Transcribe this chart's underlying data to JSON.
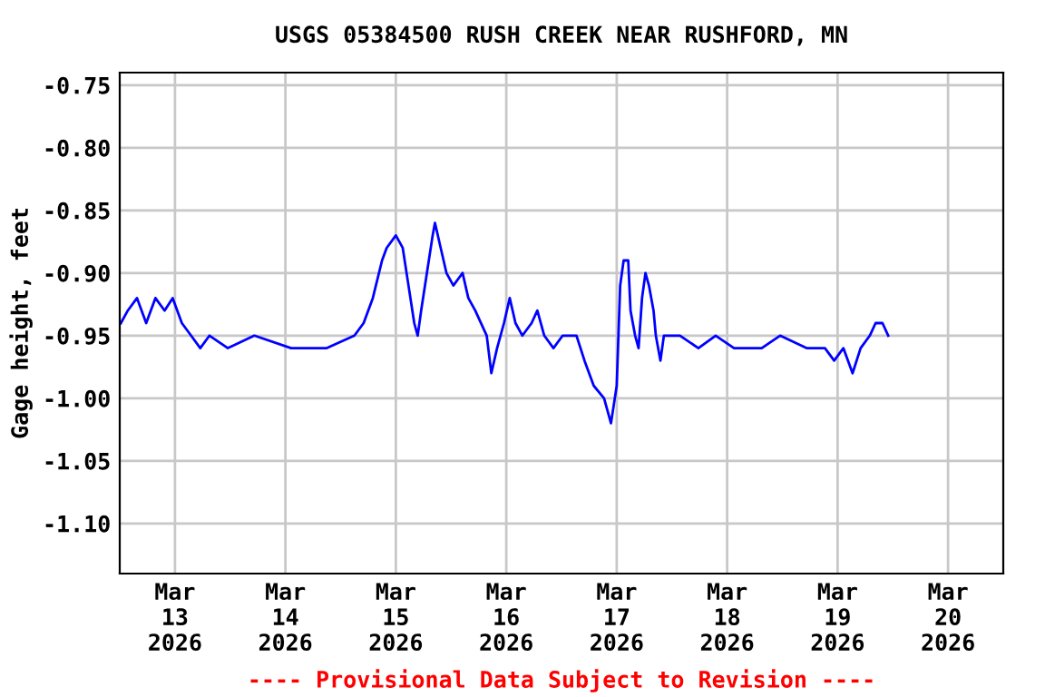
{
  "chart_data": {
    "type": "line",
    "title": "USGS 05384500 RUSH CREEK NEAR RUSHFORD, MN",
    "ylabel": "Gage height, feet",
    "annotations": [
      "---- Provisional Data Subject to Revision ----"
    ],
    "x": [
      "2026-03-12T12:15",
      "2026-03-12T13:45",
      "2026-03-12T15:45",
      "2026-03-12T17:45",
      "2026-03-12T19:45",
      "2026-03-12T21:45",
      "2026-03-12T23:30",
      "2026-03-13T01:30",
      "2026-03-13T03:30",
      "2026-03-13T05:30",
      "2026-03-13T07:30",
      "2026-03-13T11:30",
      "2026-03-13T17:15",
      "2026-03-14T01:15",
      "2026-03-14T05:00",
      "2026-03-14T09:00",
      "2026-03-14T15:00",
      "2026-03-14T17:00",
      "2026-03-14T19:00",
      "2026-03-14T21:00",
      "2026-03-14T22:00",
      "2026-03-15T00:00",
      "2026-03-15T01:30",
      "2026-03-15T02:45",
      "2026-03-15T04:00",
      "2026-03-15T04:45",
      "2026-03-15T05:30",
      "2026-03-15T06:45",
      "2026-03-15T08:00",
      "2026-03-15T08:30",
      "2026-03-15T09:45",
      "2026-03-15T11:00",
      "2026-03-15T12:30",
      "2026-03-15T14:30",
      "2026-03-15T15:45",
      "2026-03-15T17:15",
      "2026-03-15T19:45",
      "2026-03-15T20:45",
      "2026-03-15T22:00",
      "2026-03-15T23:30",
      "2026-03-16T00:45",
      "2026-03-16T02:00",
      "2026-03-16T03:30",
      "2026-03-16T05:30",
      "2026-03-16T06:45",
      "2026-03-16T08:15",
      "2026-03-16T10:15",
      "2026-03-16T12:15",
      "2026-03-16T15:15",
      "2026-03-16T17:00",
      "2026-03-16T19:00",
      "2026-03-16T21:15",
      "2026-03-16T22:45",
      "2026-03-17T00:00",
      "2026-03-17T00:45",
      "2026-03-17T01:30",
      "2026-03-17T02:30",
      "2026-03-17T03:00",
      "2026-03-17T04:00",
      "2026-03-17T04:45",
      "2026-03-17T05:30",
      "2026-03-17T06:15",
      "2026-03-17T07:00",
      "2026-03-17T08:00",
      "2026-03-17T08:30",
      "2026-03-17T09:30",
      "2026-03-17T10:15",
      "2026-03-17T13:45",
      "2026-03-17T17:45",
      "2026-03-17T21:30",
      "2026-03-18T01:30",
      "2026-03-18T07:30",
      "2026-03-18T11:30",
      "2026-03-18T17:15",
      "2026-03-18T21:15",
      "2026-03-18T23:15",
      "2026-03-19T01:15",
      "2026-03-19T03:15",
      "2026-03-19T05:00",
      "2026-03-19T07:00",
      "2026-03-19T08:15",
      "2026-03-19T09:45",
      "2026-03-19T11:00"
    ],
    "series": [
      {
        "color": "#0000ff",
        "values": [
          -0.94,
          -0.93,
          -0.92,
          -0.94,
          -0.92,
          -0.93,
          -0.92,
          -0.94,
          -0.95,
          -0.96,
          -0.95,
          -0.96,
          -0.95,
          -0.96,
          -0.96,
          -0.96,
          -0.95,
          -0.94,
          -0.92,
          -0.89,
          -0.88,
          -0.87,
          -0.88,
          -0.91,
          -0.94,
          -0.95,
          -0.93,
          -0.9,
          -0.87,
          -0.86,
          -0.88,
          -0.9,
          -0.91,
          -0.9,
          -0.92,
          -0.93,
          -0.95,
          -0.98,
          -0.96,
          -0.94,
          -0.92,
          -0.94,
          -0.95,
          -0.94,
          -0.93,
          -0.95,
          -0.96,
          -0.95,
          -0.95,
          -0.97,
          -0.99,
          -1.0,
          -1.02,
          -0.99,
          -0.91,
          -0.89,
          -0.89,
          -0.93,
          -0.95,
          -0.96,
          -0.92,
          -0.9,
          -0.91,
          -0.93,
          -0.95,
          -0.97,
          -0.95,
          -0.95,
          -0.96,
          -0.95,
          -0.96,
          -0.96,
          -0.95,
          -0.96,
          -0.96,
          -0.97,
          -0.96,
          -0.98,
          -0.96,
          -0.95,
          -0.94,
          -0.94,
          -0.95
        ]
      }
    ],
    "xlim": [
      "2026-03-12T12:00",
      "2026-03-20T12:00"
    ],
    "xticks": [
      {
        "value": "2026-03-13",
        "label": "Mar\n13\n2026"
      },
      {
        "value": "2026-03-14",
        "label": "Mar\n14\n2026"
      },
      {
        "value": "2026-03-15",
        "label": "Mar\n15\n2026"
      },
      {
        "value": "2026-03-16",
        "label": "Mar\n16\n2026"
      },
      {
        "value": "2026-03-17",
        "label": "Mar\n17\n2026"
      },
      {
        "value": "2026-03-18",
        "label": "Mar\n18\n2026"
      },
      {
        "value": "2026-03-19",
        "label": "Mar\n19\n2026"
      },
      {
        "value": "2026-03-20",
        "label": "Mar\n20\n2026"
      }
    ],
    "ylim": [
      -1.14,
      -0.74
    ],
    "yticks": [
      {
        "value": -0.75,
        "label": "-0.75"
      },
      {
        "value": -0.8,
        "label": "-0.80"
      },
      {
        "value": -0.85,
        "label": "-0.85"
      },
      {
        "value": -0.9,
        "label": "-0.90"
      },
      {
        "value": -0.95,
        "label": "-0.95"
      },
      {
        "value": -1.0,
        "label": "-1.00"
      },
      {
        "value": -1.05,
        "label": "-1.05"
      },
      {
        "value": -1.1,
        "label": "-1.10"
      }
    ],
    "grid": true,
    "line_style": "solid",
    "marker": "none"
  }
}
